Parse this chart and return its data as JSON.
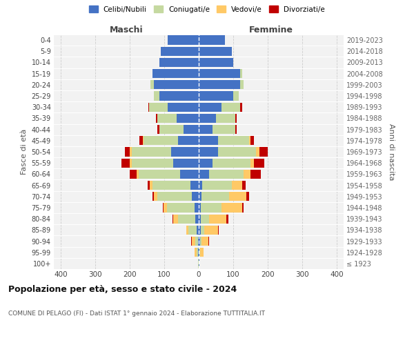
{
  "age_groups": [
    "100+",
    "95-99",
    "90-94",
    "85-89",
    "80-84",
    "75-79",
    "70-74",
    "65-69",
    "60-64",
    "55-59",
    "50-54",
    "45-49",
    "40-44",
    "35-39",
    "30-34",
    "25-29",
    "20-24",
    "15-19",
    "10-14",
    "5-9",
    "0-4"
  ],
  "birth_years": [
    "≤ 1923",
    "1924-1928",
    "1929-1933",
    "1934-1938",
    "1939-1943",
    "1944-1948",
    "1949-1953",
    "1954-1958",
    "1959-1963",
    "1964-1968",
    "1969-1973",
    "1974-1978",
    "1979-1983",
    "1984-1988",
    "1989-1993",
    "1994-1998",
    "1999-2003",
    "2004-2008",
    "2009-2013",
    "2014-2018",
    "2019-2023"
  ],
  "maschi": {
    "celibi": [
      1,
      2,
      3,
      6,
      10,
      12,
      20,
      25,
      55,
      75,
      80,
      60,
      45,
      65,
      90,
      115,
      130,
      135,
      115,
      110,
      90
    ],
    "coniugati": [
      1,
      5,
      8,
      25,
      50,
      80,
      100,
      110,
      120,
      120,
      115,
      100,
      70,
      55,
      55,
      15,
      10,
      0,
      0,
      0,
      0
    ],
    "vedovi": [
      0,
      5,
      10,
      5,
      15,
      10,
      10,
      8,
      5,
      5,
      5,
      3,
      0,
      0,
      0,
      0,
      0,
      0,
      0,
      0,
      0
    ],
    "divorziati": [
      0,
      0,
      2,
      0,
      2,
      2,
      5,
      5,
      20,
      25,
      15,
      10,
      5,
      5,
      2,
      0,
      0,
      0,
      0,
      0,
      0
    ]
  },
  "femmine": {
    "nubili": [
      1,
      1,
      3,
      5,
      5,
      5,
      8,
      10,
      30,
      40,
      55,
      55,
      40,
      50,
      65,
      100,
      120,
      120,
      100,
      95,
      75
    ],
    "coniugate": [
      0,
      2,
      5,
      10,
      25,
      60,
      80,
      85,
      100,
      110,
      110,
      90,
      65,
      55,
      55,
      15,
      10,
      5,
      0,
      0,
      0
    ],
    "vedove": [
      0,
      10,
      20,
      40,
      50,
      60,
      50,
      30,
      20,
      10,
      10,
      5,
      0,
      0,
      0,
      0,
      0,
      0,
      0,
      0,
      0
    ],
    "divorziate": [
      0,
      0,
      2,
      2,
      5,
      5,
      8,
      10,
      30,
      30,
      25,
      10,
      5,
      5,
      5,
      0,
      0,
      0,
      0,
      0,
      0
    ]
  },
  "colors": {
    "celibi": "#4472c4",
    "coniugati": "#c5d9a0",
    "vedovi": "#ffc966",
    "divorziati": "#c00000"
  },
  "xlim": 420,
  "title": "Popolazione per età, sesso e stato civile - 2024",
  "subtitle": "COMUNE DI PELAGO (FI) - Dati ISTAT 1° gennaio 2024 - Elaborazione TUTTITALIA.IT",
  "ylabel": "Fasce di età",
  "ylabel_right": "Anni di nascita",
  "xlabel_maschi": "Maschi",
  "xlabel_femmine": "Femmine",
  "legend_labels": [
    "Celibi/Nubili",
    "Coniugati/e",
    "Vedovi/e",
    "Divorziati/e"
  ],
  "bg_color": "#ffffff",
  "plot_bg_color": "#f2f2f2",
  "grid_color": "#cccccc"
}
